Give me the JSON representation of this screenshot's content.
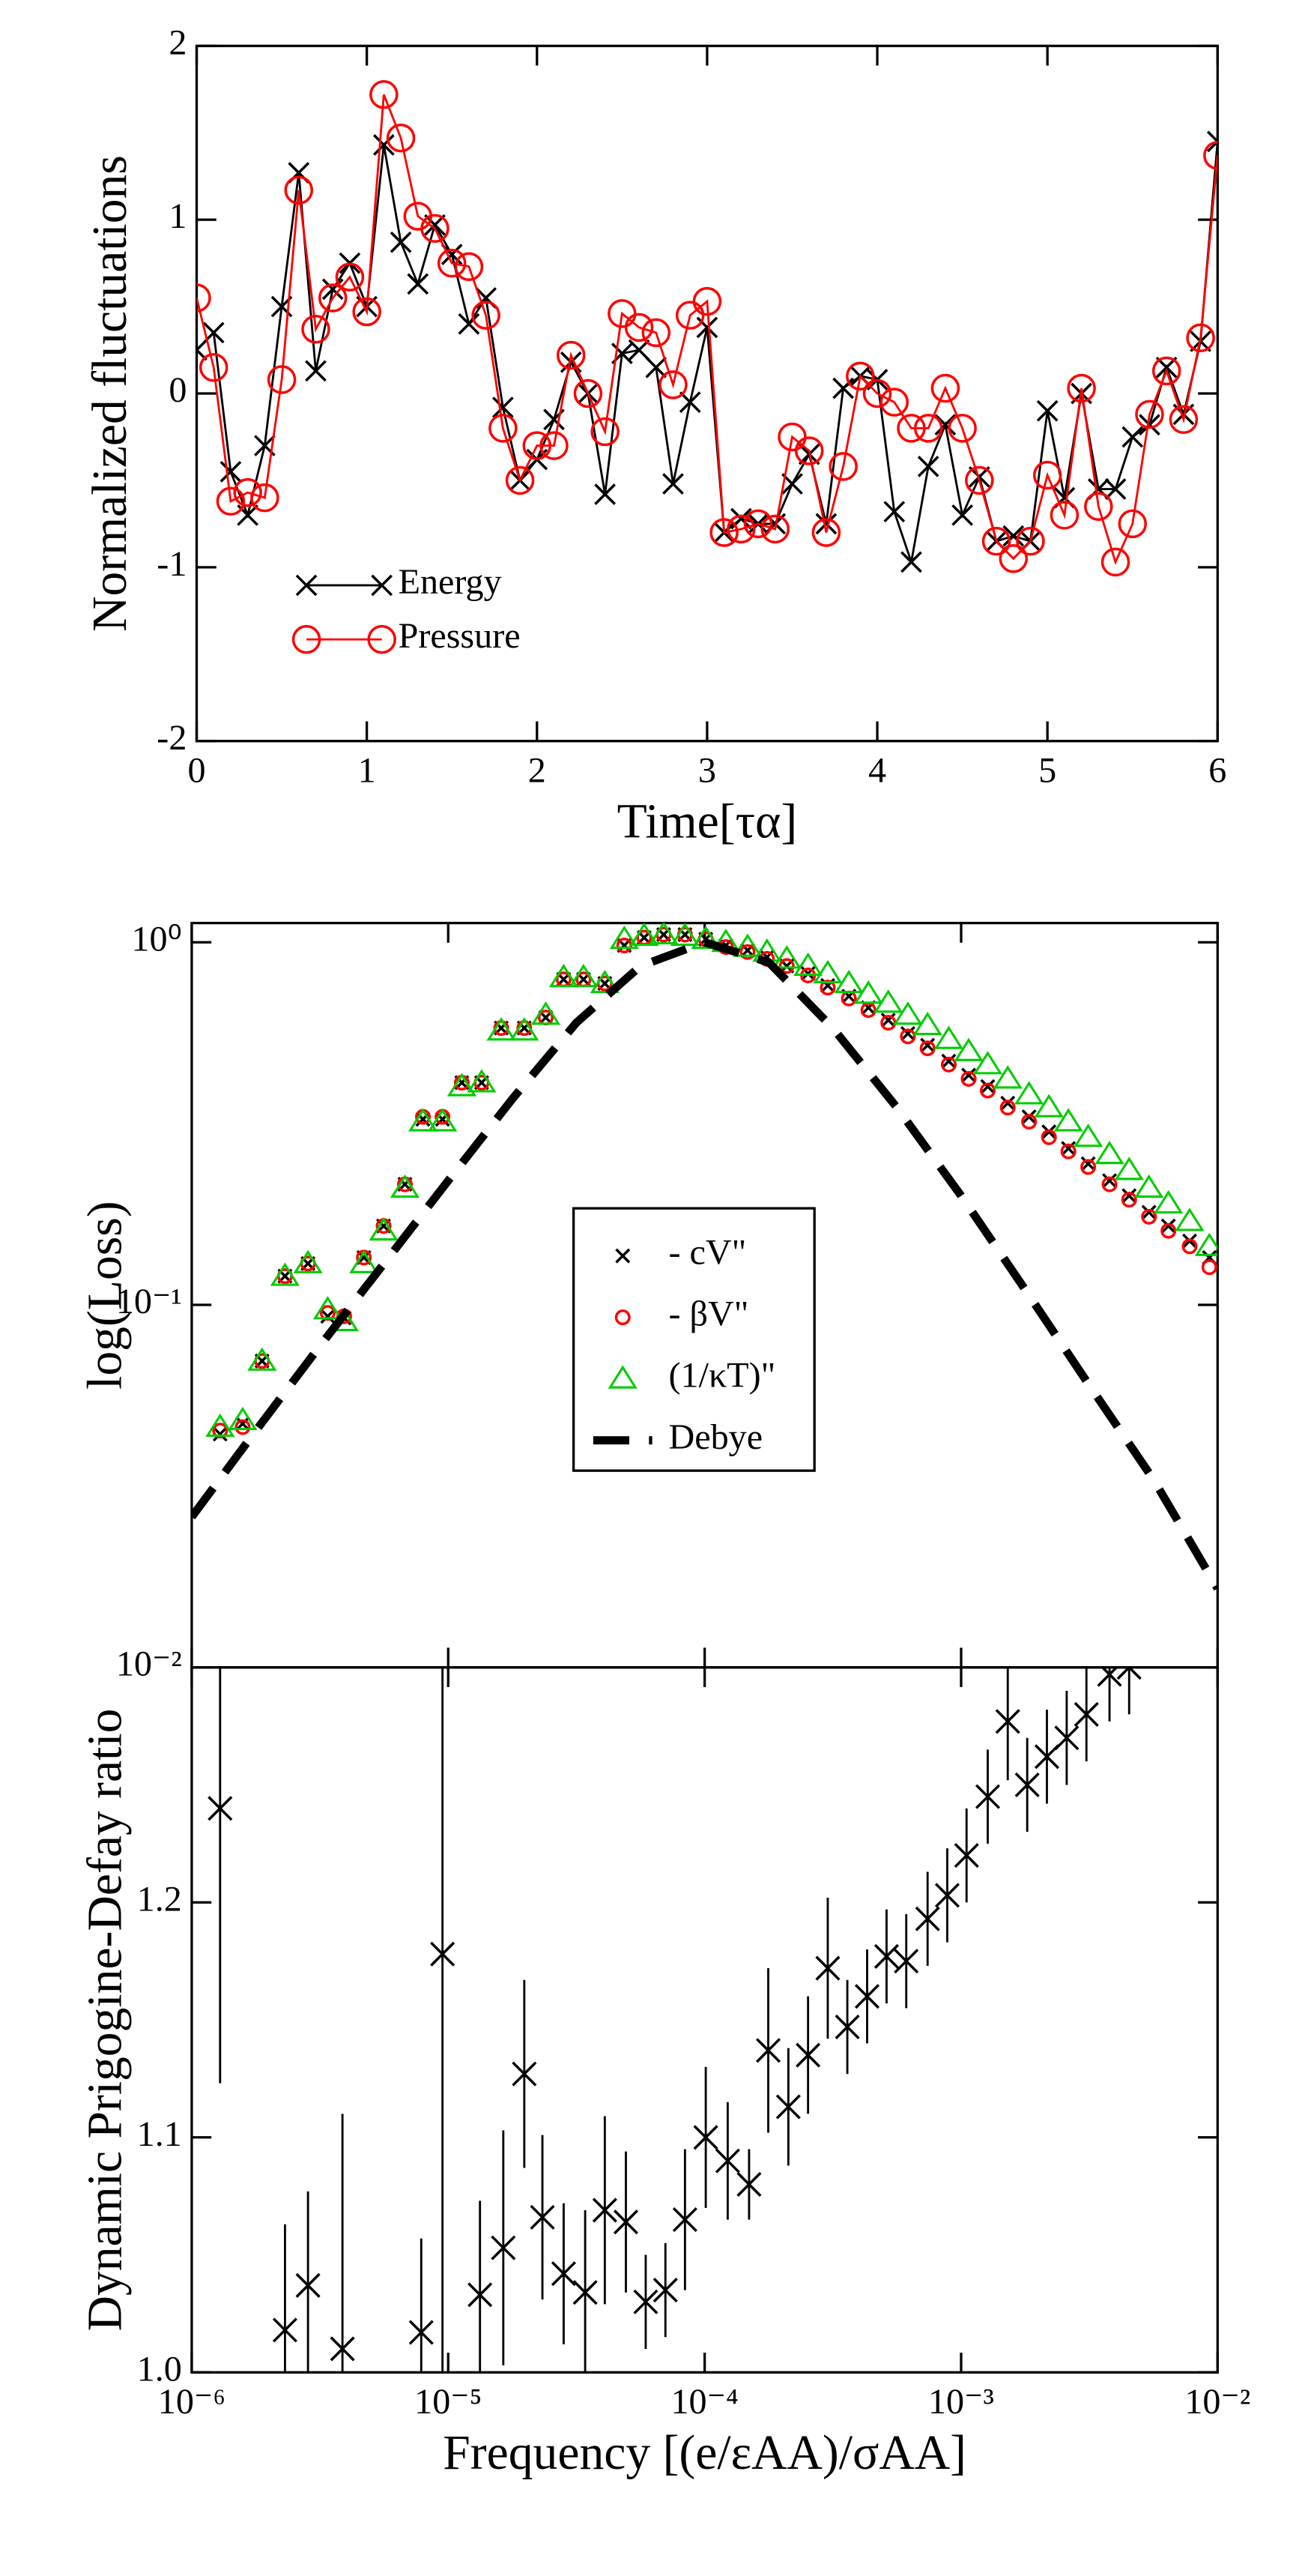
{
  "chart_data": [
    {
      "type": "line",
      "xlabel": "Time[τα]",
      "ylabel": "Normalized fluctuations",
      "x": [
        0,
        0.1,
        0.2,
        0.3,
        0.4,
        0.5,
        0.6,
        0.7,
        0.8,
        0.9,
        1,
        1.1,
        1.2,
        1.3,
        1.4,
        1.5,
        1.6,
        1.7,
        1.8,
        1.9,
        2,
        2.1,
        2.2,
        2.3,
        2.4,
        2.5,
        2.6,
        2.7,
        2.8,
        2.9,
        3,
        3.1,
        3.2,
        3.3,
        3.4,
        3.5,
        3.6,
        3.7,
        3.8,
        3.9,
        4,
        4.1,
        4.2,
        4.3,
        4.4,
        4.5,
        4.6,
        4.7,
        4.8,
        4.9,
        5,
        5.1,
        5.2,
        5.3,
        5.4,
        5.5,
        5.6,
        5.7,
        5.8,
        5.9,
        6
      ],
      "series": [
        {
          "name": "Energy",
          "color": "#000000",
          "marker": "x",
          "values": [
            0.25,
            0.35,
            -0.45,
            -0.7,
            -0.3,
            0.5,
            1.27,
            0.13,
            0.6,
            0.75,
            0.5,
            1.43,
            0.87,
            0.63,
            0.97,
            0.8,
            0.4,
            0.55,
            -0.08,
            -0.5,
            -0.38,
            -0.15,
            0.18,
            0.0,
            -0.58,
            0.23,
            0.25,
            0.15,
            -0.52,
            -0.05,
            0.38,
            -0.8,
            -0.72,
            -0.75,
            -0.75,
            -0.52,
            -0.35,
            -0.75,
            0.03,
            0.1,
            0.08,
            -0.68,
            -0.97,
            -0.42,
            -0.18,
            -0.7,
            -0.48,
            -0.85,
            -0.82,
            -0.85,
            -0.1,
            -0.6,
            0.0,
            -0.55,
            -0.55,
            -0.25,
            -0.18,
            0.15,
            -0.12,
            0.3,
            1.45
          ]
        },
        {
          "name": "Pressure",
          "color": "#ff0000",
          "marker": "circle",
          "values": [
            0.55,
            0.15,
            -0.62,
            -0.57,
            -0.6,
            0.08,
            1.17,
            0.37,
            0.55,
            0.67,
            0.47,
            1.72,
            1.47,
            1.02,
            0.95,
            0.75,
            0.73,
            0.45,
            -0.2,
            -0.5,
            -0.3,
            -0.3,
            0.22,
            0.0,
            -0.22,
            0.46,
            0.38,
            0.35,
            0.05,
            0.45,
            0.53,
            -0.8,
            -0.78,
            -0.75,
            -0.78,
            -0.25,
            -0.33,
            -0.8,
            -0.42,
            0.1,
            0.0,
            -0.05,
            -0.2,
            -0.2,
            0.03,
            -0.2,
            -0.5,
            -0.85,
            -0.95,
            -0.85,
            -0.47,
            -0.7,
            0.03,
            -0.65,
            -0.97,
            -0.75,
            -0.12,
            0.13,
            -0.15,
            0.32,
            1.37
          ]
        }
      ],
      "xlim": [
        0,
        6
      ],
      "xticks": [
        0,
        1,
        2,
        3,
        4,
        5,
        6
      ],
      "ylim": [
        -2,
        2
      ],
      "yticks": [
        -2,
        -1,
        0,
        1,
        2
      ],
      "legend": "lower left"
    },
    {
      "type": "scatter",
      "ylabel": "log(Loss)",
      "xscale": "log",
      "yscale": "log",
      "x": [
        1.29e-06,
        1.58e-06,
        1.88e-06,
        2.31e-06,
        2.84e-06,
        3.39e-06,
        3.93e-06,
        4.69e-06,
        5.6e-06,
        6.78e-06,
        7.97e-06,
        9.5e-06,
        1.13e-05,
        1.35e-05,
        1.61e-05,
        1.98e-05,
        2.4e-05,
        2.82e-05,
        3.37e-05,
        4.08e-05,
        4.86e-05,
        5.81e-05,
        6.92e-05,
        8.38e-05,
        0.000101,
        0.000121,
        0.000147,
        0.000175,
        0.000209,
        0.000253,
        0.000302,
        0.000365,
        0.000435,
        0.00052,
        0.00062,
        0.00074,
        0.000895,
        0.00107,
        0.00127,
        0.00152,
        0.00184,
        0.0022,
        0.00262,
        0.00313,
        0.00379,
        0.00452,
        0.0054,
        0.00643,
        0.00778,
        0.00929
      ],
      "series": [
        {
          "name": "- cV\"",
          "color": "#000000",
          "marker": "x",
          "values": [
            0.044,
            0.047,
            0.07,
            0.12,
            0.13,
            0.093,
            0.092,
            0.135,
            0.165,
            0.215,
            0.325,
            0.325,
            0.41,
            0.41,
            0.58,
            0.58,
            0.62,
            0.79,
            0.79,
            0.77,
            0.98,
            1.03,
            1.05,
            1.05,
            1.02,
            0.98,
            0.95,
            0.91,
            0.86,
            0.82,
            0.76,
            0.71,
            0.66,
            0.61,
            0.56,
            0.52,
            0.47,
            0.43,
            0.4,
            0.36,
            0.33,
            0.3,
            0.27,
            0.245,
            0.22,
            0.2,
            0.18,
            0.165,
            0.15,
            0.135
          ]
        },
        {
          "name": "- βV\"",
          "color": "#ff0000",
          "marker": "circle",
          "values": [
            0.045,
            0.046,
            0.07,
            0.12,
            0.13,
            0.095,
            0.093,
            0.135,
            0.165,
            0.215,
            0.33,
            0.33,
            0.41,
            0.41,
            0.58,
            0.58,
            0.62,
            0.79,
            0.79,
            0.77,
            0.98,
            1.03,
            1.05,
            1.05,
            1.02,
            0.97,
            0.94,
            0.9,
            0.86,
            0.81,
            0.75,
            0.7,
            0.65,
            0.6,
            0.55,
            0.51,
            0.46,
            0.42,
            0.39,
            0.35,
            0.32,
            0.29,
            0.265,
            0.24,
            0.215,
            0.195,
            0.175,
            0.16,
            0.145,
            0.127
          ]
        },
        {
          "name": "(1/κT)\"",
          "color": "#00cc00",
          "marker": "triangle",
          "values": [
            0.046,
            0.048,
            0.07,
            0.12,
            0.13,
            0.097,
            0.09,
            0.13,
            0.16,
            0.21,
            0.32,
            0.32,
            0.4,
            0.41,
            0.57,
            0.57,
            0.63,
            0.8,
            0.8,
            0.77,
            1.02,
            1.04,
            1.05,
            1.04,
            1.02,
            1.0,
            0.97,
            0.94,
            0.9,
            0.86,
            0.82,
            0.77,
            0.72,
            0.68,
            0.63,
            0.59,
            0.54,
            0.5,
            0.46,
            0.42,
            0.38,
            0.35,
            0.32,
            0.29,
            0.26,
            0.235,
            0.21,
            0.19,
            0.17,
            0.145
          ]
        },
        {
          "name": "Debye",
          "color": "#000000",
          "marker": "dashed",
          "x": [
            1e-06,
            1.78e-06,
            3.16e-06,
            5.62e-06,
            1e-05,
            1.78e-05,
            3.16e-05,
            5.62e-05,
            0.0001,
            0.000178,
            0.000316,
            0.000562,
            0.001,
            0.00178,
            0.00316,
            0.00562,
            0.01
          ],
          "values": [
            0.026,
            0.045,
            0.077,
            0.13,
            0.22,
            0.37,
            0.6,
            0.86,
            1.0,
            0.88,
            0.58,
            0.35,
            0.2,
            0.11,
            0.06,
            0.033,
            0.0165
          ]
        }
      ],
      "xlim": [
        1e-06,
        0.01
      ],
      "ylim": [
        0.01,
        1.13
      ],
      "yticks": [
        {
          "value": 0.01,
          "label": "10⁻²"
        },
        {
          "value": 0.1,
          "label": "10⁻¹"
        },
        {
          "value": 1,
          "label": "10⁰"
        }
      ],
      "legend": "center"
    },
    {
      "type": "errorbar",
      "xlabel": "Frequency [(e/εAA)/σAA]",
      "ylabel": "Dynamic Prigogine-Defay ratio",
      "xscale": "log",
      "x": [
        1.29e-06,
        2.31e-06,
        2.84e-06,
        3.87e-06,
        7.85e-06,
        9.5e-06,
        1.33e-05,
        1.64e-05,
        1.98e-05,
        2.33e-05,
        2.82e-05,
        3.42e-05,
        4.08e-05,
        4.93e-05,
        5.89e-05,
        7.03e-05,
        8.38e-05,
        0.000101,
        0.000123,
        0.000149,
        0.000177,
        0.000212,
        0.000253,
        0.000302,
        0.00036,
        0.00043,
        0.000512,
        0.000611,
        0.00074,
        0.000883,
        0.00105,
        0.00127,
        0.00152,
        0.00181,
        0.00216,
        0.00258,
        0.00308,
        0.00379,
        0.00452
      ],
      "values": [
        1.24,
        1.018,
        1.037,
        1.01,
        1.017,
        1.178,
        1.033,
        1.053,
        1.127,
        1.066,
        1.042,
        1.034,
        1.069,
        1.064,
        1.03,
        1.035,
        1.065,
        1.1,
        1.09,
        1.08,
        1.137,
        1.113,
        1.135,
        1.172,
        1.147,
        1.16,
        1.177,
        1.175,
        1.193,
        1.203,
        1.22,
        1.245,
        1.277,
        1.25,
        1.262,
        1.27,
        1.28,
        1.297,
        1.3
      ],
      "errors": [
        0.117,
        0.045,
        0.04,
        0.1,
        0.04,
        0.2,
        0.04,
        0.05,
        0.04,
        0.035,
        0.03,
        0.035,
        0.04,
        0.03,
        0.02,
        0.02,
        0.03,
        0.03,
        0.025,
        0.015,
        0.035,
        0.025,
        0.025,
        0.03,
        0.02,
        0.02,
        0.02,
        0.02,
        0.02,
        0.02,
        0.02,
        0.02,
        0.025,
        0.02,
        0.02,
        0.02,
        0.02,
        0.02,
        0.02
      ],
      "color": "#000000",
      "xlim": [
        1e-06,
        0.01
      ],
      "xticks": [
        {
          "value": 1e-06,
          "label": "10⁻⁶"
        },
        {
          "value": 1e-05,
          "label": "10⁻⁵"
        },
        {
          "value": 0.0001,
          "label": "10⁻⁴"
        },
        {
          "value": 0.001,
          "label": "10⁻³"
        },
        {
          "value": 0.01,
          "label": "10⁻²"
        }
      ],
      "ylim": [
        1.0,
        1.3
      ],
      "yticks": [
        {
          "value": 1,
          "label": "1.0"
        },
        1.1,
        1.2
      ]
    }
  ]
}
